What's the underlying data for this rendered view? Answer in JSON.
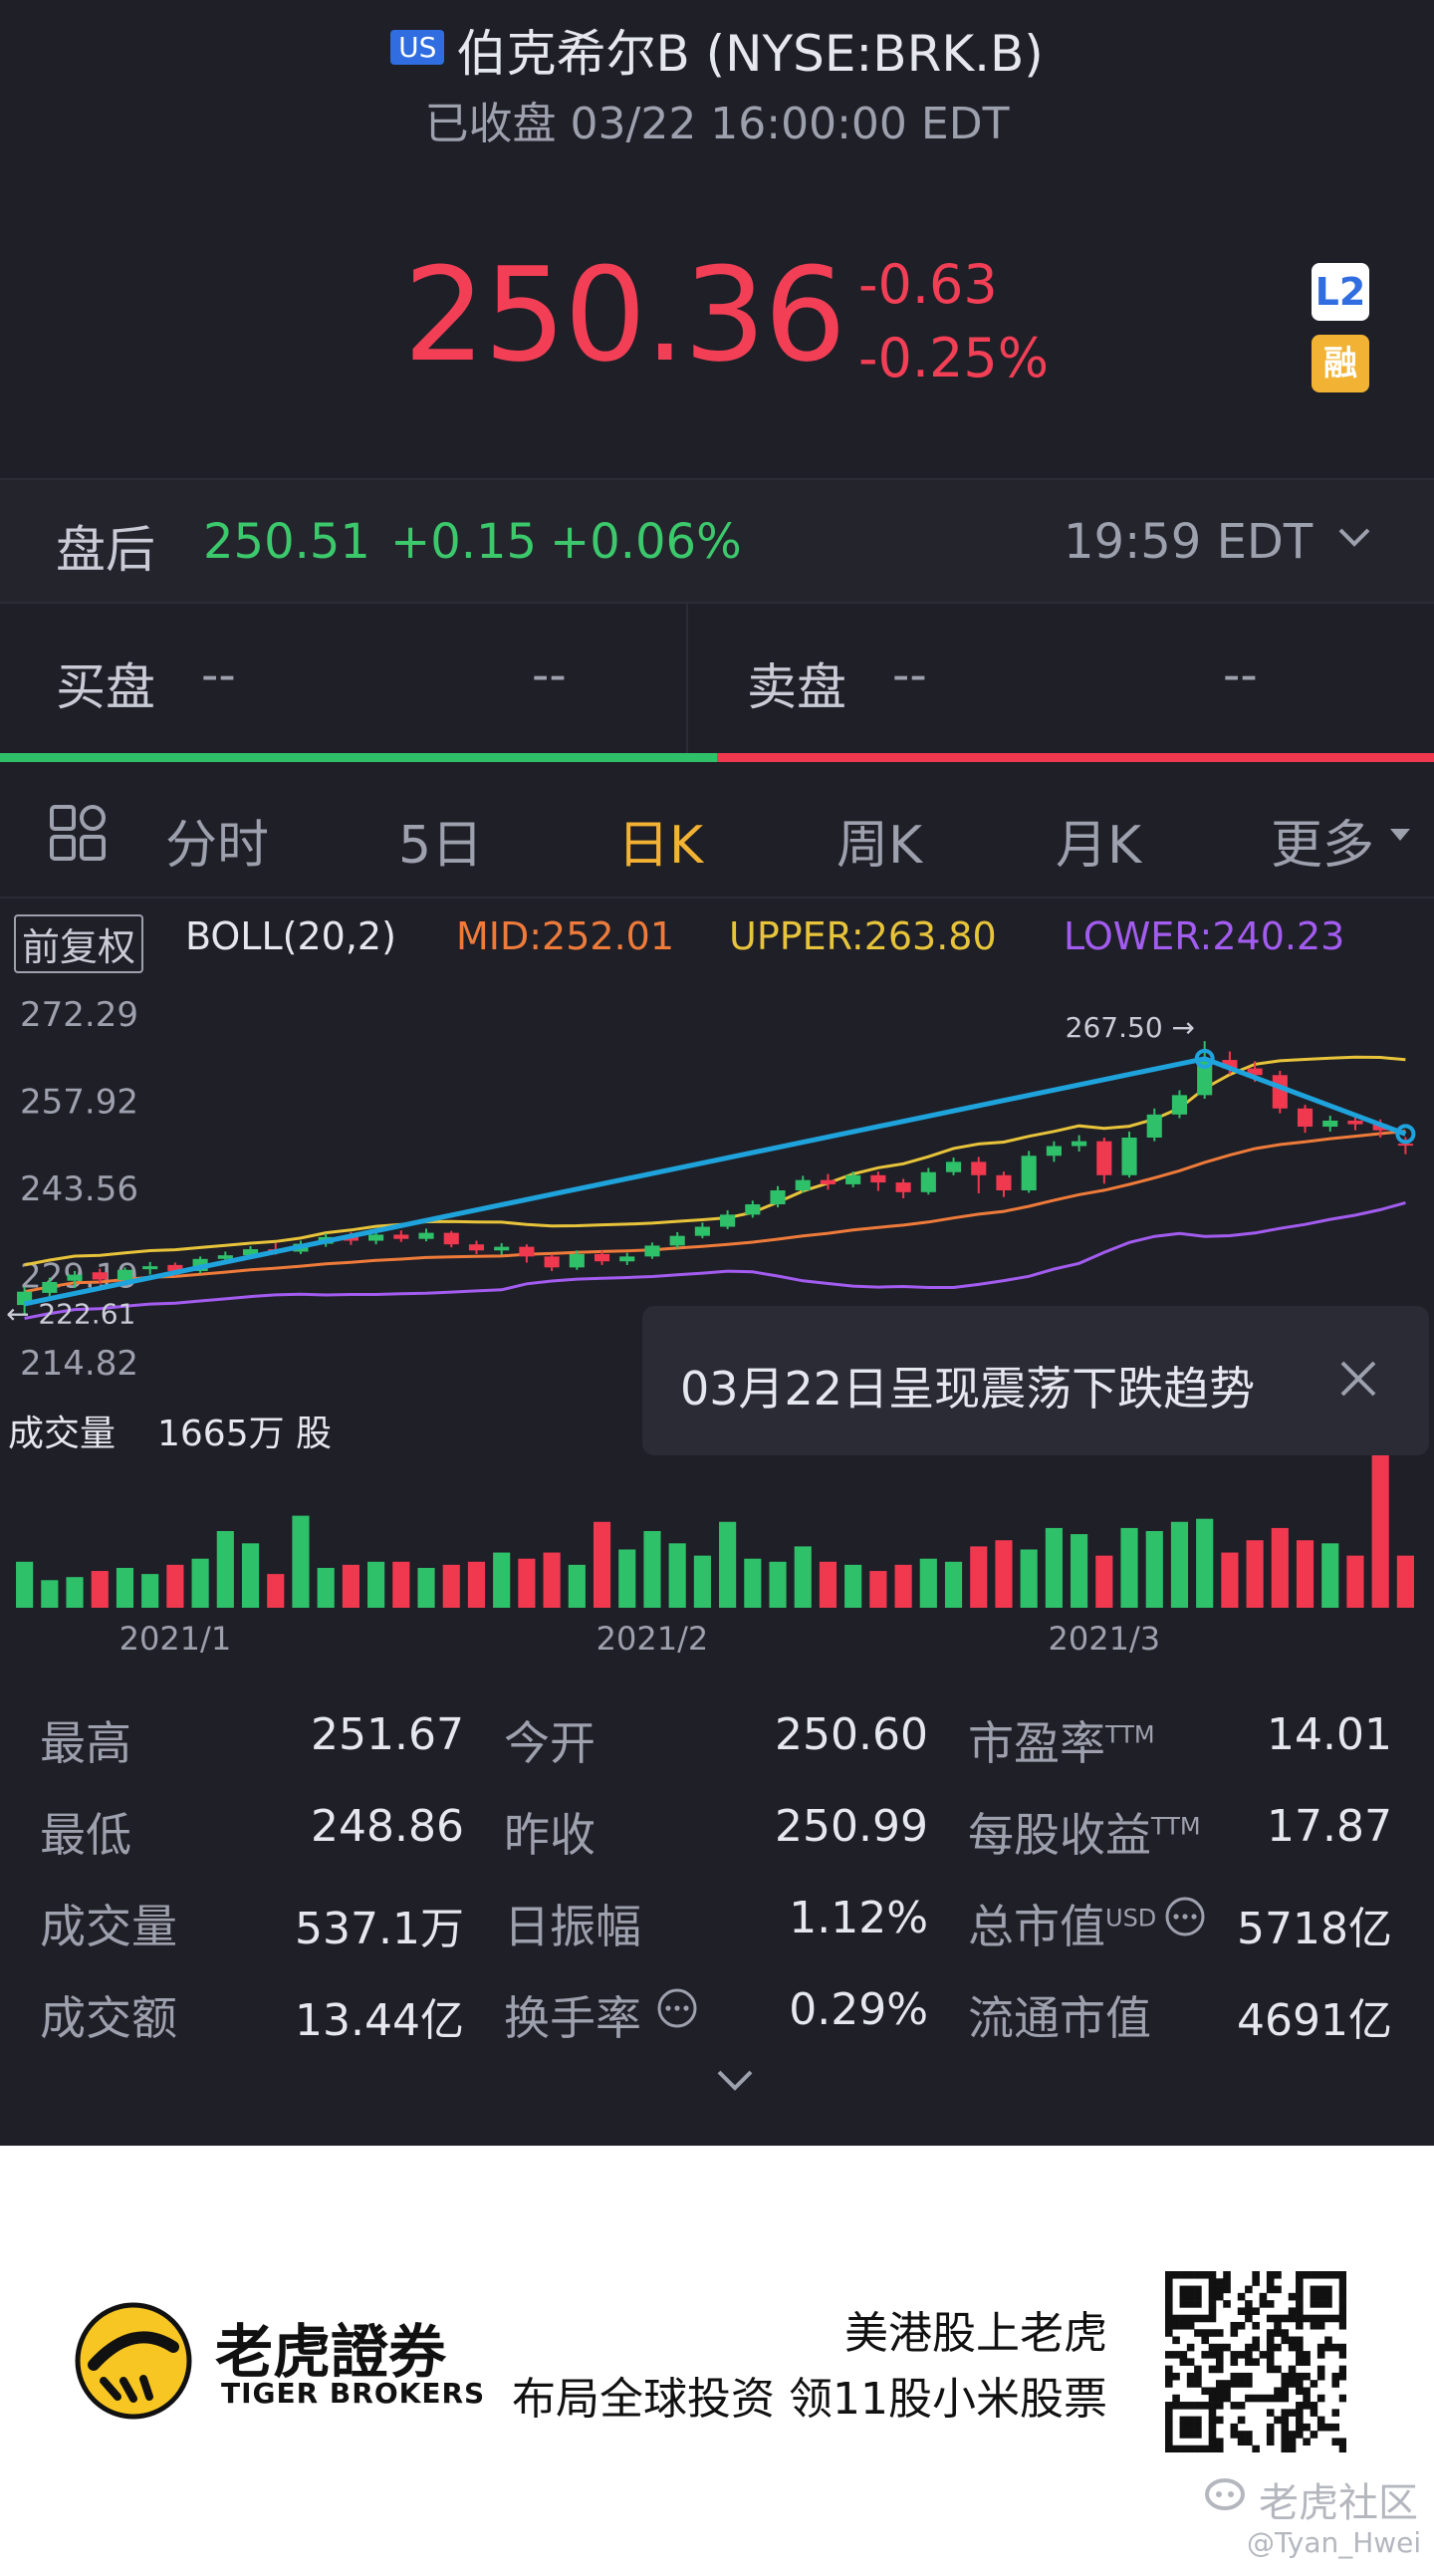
{
  "header": {
    "market_badge": "US",
    "title": "伯克希尔B (NYSE:BRK.B)",
    "status": "已收盘 03/22 16:00:00 EDT"
  },
  "quote": {
    "price": "250.36",
    "change": "-0.63",
    "change_pct": "-0.25%",
    "badge_l2": "L2",
    "badge_margin": "融"
  },
  "after_hours": {
    "label": "盘后",
    "price": "250.51",
    "change": "+0.15",
    "change_pct": "+0.06%",
    "time": "19:59 EDT"
  },
  "order_book": {
    "bid_label": "买盘",
    "bid_price": "--",
    "bid_size": "--",
    "ask_label": "卖盘",
    "ask_price": "--",
    "ask_size": "--",
    "bid_ratio": 0.5
  },
  "tabs": [
    "分时",
    "5日",
    "日K",
    "周K",
    "月K",
    "更多"
  ],
  "active_tab": "日K",
  "chart": {
    "adjust_label": "前复权",
    "indicator": "BOLL(20,2)",
    "mid": "MID:252.01",
    "upper": "UPPER:263.80",
    "lower": "LOWER:240.23",
    "high_marker": "267.50",
    "low_marker": "222.61",
    "volume_label": "成交量",
    "volume_value": "1665万 股",
    "tooltip_text": "03月22日呈现震荡下跌趋势",
    "colors": {
      "up": "#2fc06a",
      "down": "#f0384f",
      "upper": "#e7c43a",
      "mid": "#ef7b3a",
      "lower": "#a35cf0",
      "trend": "#1fa3dc"
    }
  },
  "chart_data": {
    "type": "candlestick",
    "y_ticks": [
      "272.29",
      "257.92",
      "243.56",
      "229.19",
      "214.82"
    ],
    "ylim": [
      214.82,
      272.29
    ],
    "x_ticks": [
      "2021/1",
      "2021/2",
      "2021/3"
    ],
    "candles": [
      {
        "o": 224.0,
        "c": 226.2,
        "h": 227.0,
        "l": 222.6
      },
      {
        "o": 226.0,
        "c": 227.8,
        "h": 228.5,
        "l": 225.0
      },
      {
        "o": 228.0,
        "c": 229.0,
        "h": 229.6,
        "l": 226.8
      },
      {
        "o": 229.4,
        "c": 228.2,
        "h": 230.0,
        "l": 227.5
      },
      {
        "o": 228.1,
        "c": 229.8,
        "h": 230.2,
        "l": 227.6
      },
      {
        "o": 229.9,
        "c": 230.4,
        "h": 231.1,
        "l": 229.0
      },
      {
        "o": 230.6,
        "c": 229.6,
        "h": 231.0,
        "l": 228.8
      },
      {
        "o": 229.6,
        "c": 231.6,
        "h": 232.0,
        "l": 229.2
      },
      {
        "o": 231.6,
        "c": 232.2,
        "h": 232.8,
        "l": 230.9
      },
      {
        "o": 232.2,
        "c": 233.2,
        "h": 233.7,
        "l": 231.6
      },
      {
        "o": 233.2,
        "c": 232.8,
        "h": 234.2,
        "l": 232.3
      },
      {
        "o": 232.8,
        "c": 234.1,
        "h": 234.6,
        "l": 232.4
      },
      {
        "o": 234.1,
        "c": 235.2,
        "h": 235.8,
        "l": 233.6
      },
      {
        "o": 235.2,
        "c": 234.6,
        "h": 236.0,
        "l": 233.9
      },
      {
        "o": 234.6,
        "c": 235.6,
        "h": 236.1,
        "l": 234.0
      },
      {
        "o": 235.6,
        "c": 234.9,
        "h": 236.3,
        "l": 234.4
      },
      {
        "o": 234.9,
        "c": 235.9,
        "h": 236.6,
        "l": 234.5
      },
      {
        "o": 235.9,
        "c": 234.0,
        "h": 236.2,
        "l": 233.5
      },
      {
        "o": 234.0,
        "c": 233.0,
        "h": 234.6,
        "l": 232.4
      },
      {
        "o": 233.0,
        "c": 233.6,
        "h": 234.2,
        "l": 232.3
      },
      {
        "o": 233.6,
        "c": 232.0,
        "h": 234.0,
        "l": 231.0
      },
      {
        "o": 232.0,
        "c": 230.2,
        "h": 232.4,
        "l": 229.6
      },
      {
        "o": 230.2,
        "c": 232.4,
        "h": 233.0,
        "l": 229.8
      },
      {
        "o": 232.4,
        "c": 231.2,
        "h": 233.0,
        "l": 230.6
      },
      {
        "o": 231.2,
        "c": 232.0,
        "h": 232.6,
        "l": 230.6
      },
      {
        "o": 232.0,
        "c": 233.8,
        "h": 234.3,
        "l": 231.6
      },
      {
        "o": 233.8,
        "c": 235.4,
        "h": 236.0,
        "l": 233.3
      },
      {
        "o": 235.4,
        "c": 236.9,
        "h": 237.6,
        "l": 235.0
      },
      {
        "o": 236.9,
        "c": 238.9,
        "h": 239.6,
        "l": 236.5
      },
      {
        "o": 238.9,
        "c": 240.6,
        "h": 241.2,
        "l": 238.4
      },
      {
        "o": 240.6,
        "c": 242.9,
        "h": 243.6,
        "l": 240.1
      },
      {
        "o": 242.9,
        "c": 244.6,
        "h": 245.3,
        "l": 242.5
      },
      {
        "o": 244.6,
        "c": 243.9,
        "h": 245.6,
        "l": 243.0
      },
      {
        "o": 243.9,
        "c": 245.4,
        "h": 246.0,
        "l": 243.4
      },
      {
        "o": 245.4,
        "c": 244.2,
        "h": 246.0,
        "l": 242.8
      },
      {
        "o": 244.2,
        "c": 242.6,
        "h": 244.8,
        "l": 241.6
      },
      {
        "o": 242.6,
        "c": 245.9,
        "h": 246.6,
        "l": 242.2
      },
      {
        "o": 245.9,
        "c": 247.6,
        "h": 248.3,
        "l": 245.4
      },
      {
        "o": 247.6,
        "c": 245.4,
        "h": 248.4,
        "l": 242.4
      },
      {
        "o": 245.4,
        "c": 242.9,
        "h": 246.0,
        "l": 241.8
      },
      {
        "o": 242.9,
        "c": 248.6,
        "h": 249.4,
        "l": 242.5
      },
      {
        "o": 248.6,
        "c": 250.2,
        "h": 251.0,
        "l": 247.6
      },
      {
        "o": 250.2,
        "c": 251.0,
        "h": 252.0,
        "l": 249.3
      },
      {
        "o": 251.0,
        "c": 245.4,
        "h": 251.6,
        "l": 244.0
      },
      {
        "o": 245.4,
        "c": 251.6,
        "h": 252.6,
        "l": 245.0
      },
      {
        "o": 251.6,
        "c": 255.4,
        "h": 256.4,
        "l": 251.0
      },
      {
        "o": 255.4,
        "c": 258.6,
        "h": 259.4,
        "l": 254.8
      },
      {
        "o": 258.6,
        "c": 264.4,
        "h": 267.5,
        "l": 258.0
      },
      {
        "o": 264.4,
        "c": 263.0,
        "h": 265.8,
        "l": 262.0
      },
      {
        "o": 263.0,
        "c": 261.9,
        "h": 264.2,
        "l": 260.8
      },
      {
        "o": 261.9,
        "c": 256.4,
        "h": 262.6,
        "l": 255.6
      },
      {
        "o": 256.4,
        "c": 253.4,
        "h": 257.0,
        "l": 252.4
      },
      {
        "o": 253.4,
        "c": 254.4,
        "h": 255.2,
        "l": 252.6
      },
      {
        "o": 254.4,
        "c": 253.8,
        "h": 255.4,
        "l": 252.8
      },
      {
        "o": 253.8,
        "c": 252.8,
        "h": 254.6,
        "l": 251.6
      },
      {
        "o": 250.6,
        "c": 250.36,
        "h": 251.67,
        "l": 248.86
      }
    ],
    "volumes": [
      0.3,
      0.18,
      0.2,
      0.24,
      0.26,
      0.22,
      0.28,
      0.32,
      0.5,
      0.42,
      0.22,
      0.6,
      0.26,
      0.28,
      0.3,
      0.3,
      0.26,
      0.28,
      0.3,
      0.36,
      0.32,
      0.36,
      0.28,
      0.56,
      0.38,
      0.5,
      0.42,
      0.34,
      0.56,
      0.32,
      0.3,
      0.4,
      0.3,
      0.28,
      0.24,
      0.28,
      0.32,
      0.3,
      0.4,
      0.44,
      0.38,
      0.52,
      0.48,
      0.34,
      0.52,
      0.5,
      0.56,
      0.58,
      0.36,
      0.44,
      0.52,
      0.44,
      0.42,
      0.34,
      1.0,
      0.34
    ]
  },
  "stats": [
    {
      "label": "最高",
      "value": "251.67"
    },
    {
      "label": "今开",
      "value": "250.60"
    },
    {
      "label": "市盈率",
      "sup": "TTM",
      "value": "14.01"
    },
    {
      "label": "最低",
      "value": "248.86"
    },
    {
      "label": "昨收",
      "value": "250.99"
    },
    {
      "label": "每股收益",
      "sup": "TTM",
      "value": "17.87"
    },
    {
      "label": "成交量",
      "value": "537.1万"
    },
    {
      "label": "日振幅",
      "value": "1.12%"
    },
    {
      "label": "总市值",
      "sup": "USD",
      "value": "5718亿"
    },
    {
      "label": "成交额",
      "value": "13.44亿"
    },
    {
      "label": "换手率",
      "value": "0.29%"
    },
    {
      "label": "流通市值",
      "value": "4691亿"
    }
  ],
  "footer": {
    "brand_cn": "老虎證券",
    "brand_en": "TIGER BROKERS",
    "slogan1": "美港股上老虎",
    "slogan2": "布局全球投资 领11股小米股票",
    "community": "老虎社区",
    "user": "@Tyan_Hwei"
  }
}
